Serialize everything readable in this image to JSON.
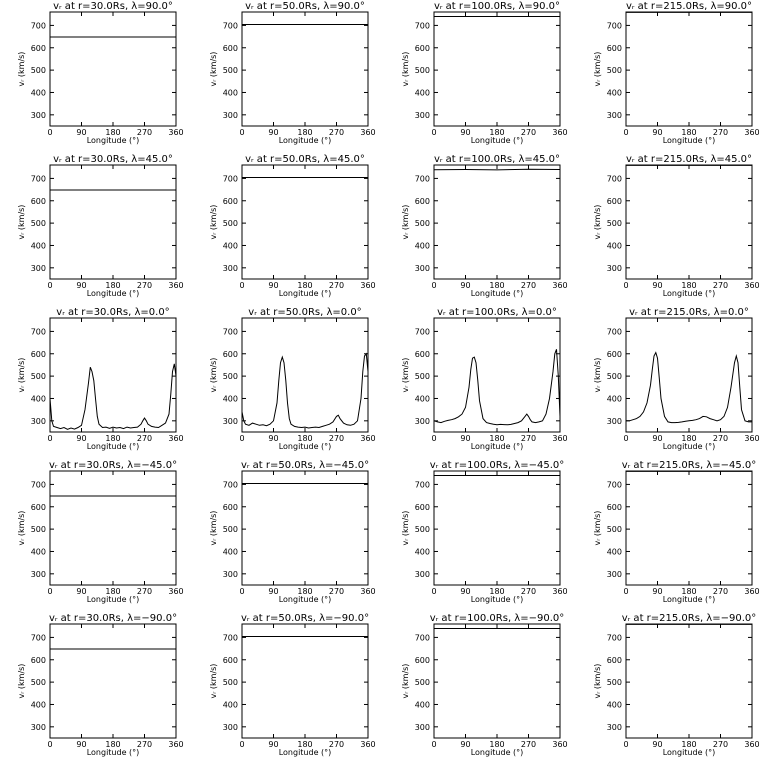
{
  "chart_data": [
    {
      "type": "line",
      "title": "vᵣ at r=30.0Rs, λ=90.0°",
      "xlabel": "Longitude (°)",
      "ylabel": "vᵣ (km/s)",
      "xlim": [
        0,
        360
      ],
      "ylim": [
        250,
        760
      ],
      "xticks": [
        0,
        90,
        180,
        270,
        360
      ],
      "yticks": [
        300,
        400,
        500,
        600,
        700
      ],
      "x": [
        0,
        360
      ],
      "y": [
        648,
        648
      ]
    },
    {
      "type": "line",
      "title": "vᵣ at r=50.0Rs, λ=90.0°",
      "xlabel": "Longitude (°)",
      "ylabel": "vᵣ (km/s)",
      "xlim": [
        0,
        360
      ],
      "ylim": [
        250,
        760
      ],
      "xticks": [
        0,
        90,
        180,
        270,
        360
      ],
      "yticks": [
        300,
        400,
        500,
        600,
        700
      ],
      "x": [
        0,
        360
      ],
      "y": [
        704,
        704
      ]
    },
    {
      "type": "line",
      "title": "vᵣ at r=100.0Rs, λ=90.0°",
      "xlabel": "Longitude (°)",
      "ylabel": "vᵣ (km/s)",
      "xlim": [
        0,
        360
      ],
      "ylim": [
        250,
        760
      ],
      "xticks": [
        0,
        90,
        180,
        270,
        360
      ],
      "yticks": [
        300,
        400,
        500,
        600,
        700
      ],
      "x": [
        0,
        360
      ],
      "y": [
        740,
        740
      ]
    },
    {
      "type": "line",
      "title": "vᵣ at r=215.0Rs, λ=90.0°",
      "xlabel": "Longitude (°)",
      "ylabel": "vᵣ (km/s)",
      "xlim": [
        0,
        360
      ],
      "ylim": [
        250,
        760
      ],
      "xticks": [
        0,
        90,
        180,
        270,
        360
      ],
      "yticks": [
        300,
        400,
        500,
        600,
        700
      ],
      "x": [
        0,
        360
      ],
      "y": [
        758,
        758
      ]
    },
    {
      "type": "line",
      "title": "vᵣ at r=30.0Rs, λ=45.0°",
      "xlabel": "Longitude (°)",
      "ylabel": "vᵣ (km/s)",
      "xlim": [
        0,
        360
      ],
      "ylim": [
        250,
        760
      ],
      "xticks": [
        0,
        90,
        180,
        270,
        360
      ],
      "yticks": [
        300,
        400,
        500,
        600,
        700
      ],
      "x": [
        0,
        360
      ],
      "y": [
        648,
        648
      ]
    },
    {
      "type": "line",
      "title": "vᵣ at r=50.0Rs, λ=45.0°",
      "xlabel": "Longitude (°)",
      "ylabel": "vᵣ (km/s)",
      "xlim": [
        0,
        360
      ],
      "ylim": [
        250,
        760
      ],
      "xticks": [
        0,
        90,
        180,
        270,
        360
      ],
      "yticks": [
        300,
        400,
        500,
        600,
        700
      ],
      "x": [
        0,
        360
      ],
      "y": [
        704,
        704
      ]
    },
    {
      "type": "line",
      "title": "vᵣ at r=100.0Rs, λ=45.0°",
      "xlabel": "Longitude (°)",
      "ylabel": "vᵣ (km/s)",
      "xlim": [
        0,
        360
      ],
      "ylim": [
        250,
        760
      ],
      "xticks": [
        0,
        90,
        180,
        270,
        360
      ],
      "yticks": [
        300,
        400,
        500,
        600,
        700
      ],
      "x": [
        0,
        90,
        180,
        270,
        360
      ],
      "y": [
        739,
        740,
        738,
        741,
        740
      ]
    },
    {
      "type": "line",
      "title": "vᵣ at r=215.0Rs, λ=45.0°",
      "xlabel": "Longitude (°)",
      "ylabel": "vᵣ (km/s)",
      "xlim": [
        0,
        360
      ],
      "ylim": [
        250,
        760
      ],
      "xticks": [
        0,
        90,
        180,
        270,
        360
      ],
      "yticks": [
        300,
        400,
        500,
        600,
        700
      ],
      "x": [
        0,
        360
      ],
      "y": [
        758,
        758
      ]
    },
    {
      "type": "line",
      "title": "vᵣ at r=30.0Rs, λ=0.0°",
      "xlabel": "Longitude (°)",
      "ylabel": "vᵣ (km/s)",
      "xlim": [
        0,
        360
      ],
      "ylim": [
        250,
        760
      ],
      "xticks": [
        0,
        90,
        180,
        270,
        360
      ],
      "yticks": [
        300,
        400,
        500,
        600,
        700
      ],
      "x": [
        0,
        5,
        10,
        20,
        30,
        40,
        50,
        60,
        70,
        80,
        90,
        100,
        110,
        115,
        120,
        125,
        130,
        135,
        140,
        150,
        160,
        170,
        180,
        190,
        200,
        210,
        220,
        230,
        240,
        250,
        260,
        265,
        270,
        275,
        280,
        290,
        300,
        310,
        320,
        330,
        340,
        345,
        350,
        355,
        360
      ],
      "y": [
        400,
        300,
        275,
        270,
        265,
        270,
        262,
        268,
        263,
        270,
        280,
        350,
        470,
        540,
        520,
        480,
        400,
        320,
        285,
        270,
        272,
        266,
        272,
        268,
        270,
        265,
        272,
        268,
        270,
        272,
        285,
        300,
        312,
        300,
        285,
        275,
        272,
        270,
        280,
        290,
        330,
        420,
        520,
        555,
        500
      ]
    },
    {
      "type": "line",
      "title": "vᵣ at r=50.0Rs, λ=0.0°",
      "xlabel": "Longitude (°)",
      "ylabel": "vᵣ (km/s)",
      "xlim": [
        0,
        360
      ],
      "ylim": [
        250,
        760
      ],
      "xticks": [
        0,
        90,
        180,
        270,
        360
      ],
      "yticks": [
        300,
        400,
        500,
        600,
        700
      ],
      "x": [
        0,
        5,
        10,
        20,
        30,
        40,
        50,
        60,
        70,
        80,
        90,
        100,
        105,
        110,
        115,
        120,
        125,
        130,
        135,
        140,
        150,
        160,
        170,
        180,
        190,
        200,
        210,
        220,
        230,
        240,
        250,
        260,
        270,
        275,
        280,
        290,
        300,
        310,
        320,
        330,
        340,
        345,
        350,
        355,
        360
      ],
      "y": [
        340,
        300,
        285,
        280,
        290,
        285,
        280,
        282,
        278,
        285,
        300,
        380,
        480,
        560,
        585,
        560,
        480,
        380,
        310,
        285,
        275,
        272,
        270,
        272,
        268,
        270,
        272,
        270,
        275,
        280,
        285,
        295,
        320,
        325,
        310,
        290,
        282,
        280,
        285,
        300,
        400,
        520,
        590,
        600,
        520
      ]
    },
    {
      "type": "line",
      "title": "vᵣ at r=100.0Rs, λ=0.0°",
      "xlabel": "Longitude (°)",
      "ylabel": "vᵣ (km/s)",
      "xlim": [
        0,
        360
      ],
      "ylim": [
        250,
        760
      ],
      "xticks": [
        0,
        90,
        180,
        270,
        360
      ],
      "yticks": [
        300,
        400,
        500,
        600,
        700
      ],
      "x": [
        0,
        10,
        20,
        30,
        40,
        50,
        60,
        70,
        80,
        90,
        100,
        105,
        110,
        115,
        120,
        125,
        130,
        140,
        150,
        160,
        170,
        180,
        190,
        200,
        210,
        220,
        230,
        240,
        250,
        260,
        265,
        270,
        275,
        280,
        290,
        300,
        310,
        320,
        330,
        340,
        345,
        350,
        355,
        360
      ],
      "y": [
        300,
        295,
        292,
        298,
        302,
        305,
        310,
        318,
        330,
        360,
        450,
        530,
        580,
        585,
        560,
        480,
        390,
        310,
        292,
        288,
        285,
        282,
        284,
        283,
        282,
        284,
        288,
        292,
        300,
        320,
        330,
        320,
        305,
        295,
        292,
        295,
        300,
        330,
        400,
        520,
        600,
        620,
        500,
        320
      ]
    },
    {
      "type": "line",
      "title": "vᵣ at r=215.0Rs, λ=0.0°",
      "xlabel": "Longitude (°)",
      "ylabel": "vᵣ (km/s)",
      "xlim": [
        0,
        360
      ],
      "ylim": [
        250,
        760
      ],
      "xticks": [
        0,
        90,
        180,
        270,
        360
      ],
      "yticks": [
        300,
        400,
        500,
        600,
        700
      ],
      "x": [
        0,
        10,
        20,
        30,
        40,
        50,
        60,
        70,
        75,
        80,
        85,
        90,
        95,
        100,
        110,
        120,
        130,
        140,
        150,
        160,
        170,
        180,
        190,
        200,
        210,
        220,
        230,
        240,
        250,
        260,
        270,
        280,
        290,
        300,
        310,
        315,
        320,
        325,
        330,
        340,
        350,
        360
      ],
      "y": [
        300,
        300,
        305,
        310,
        320,
        340,
        380,
        460,
        530,
        590,
        605,
        580,
        490,
        400,
        320,
        295,
        292,
        292,
        293,
        295,
        298,
        300,
        302,
        305,
        310,
        320,
        318,
        310,
        305,
        300,
        305,
        320,
        360,
        450,
        560,
        590,
        560,
        450,
        350,
        300,
        295,
        295
      ]
    },
    {
      "type": "line",
      "title": "vᵣ at r=30.0Rs, λ=−45.0°",
      "xlabel": "Longitude (°)",
      "ylabel": "vᵣ (km/s)",
      "xlim": [
        0,
        360
      ],
      "ylim": [
        250,
        760
      ],
      "xticks": [
        0,
        90,
        180,
        270,
        360
      ],
      "yticks": [
        300,
        400,
        500,
        600,
        700
      ],
      "x": [
        0,
        360
      ],
      "y": [
        648,
        648
      ]
    },
    {
      "type": "line",
      "title": "vᵣ at r=50.0Rs, λ=−45.0°",
      "xlabel": "Longitude (°)",
      "ylabel": "vᵣ (km/s)",
      "xlim": [
        0,
        360
      ],
      "ylim": [
        250,
        760
      ],
      "xticks": [
        0,
        90,
        180,
        270,
        360
      ],
      "yticks": [
        300,
        400,
        500,
        600,
        700
      ],
      "x": [
        0,
        360
      ],
      "y": [
        704,
        704
      ]
    },
    {
      "type": "line",
      "title": "vᵣ at r=100.0Rs, λ=−45.0°",
      "xlabel": "Longitude (°)",
      "ylabel": "vᵣ (km/s)",
      "xlim": [
        0,
        360
      ],
      "ylim": [
        250,
        760
      ],
      "xticks": [
        0,
        90,
        180,
        270,
        360
      ],
      "yticks": [
        300,
        400,
        500,
        600,
        700
      ],
      "x": [
        0,
        360
      ],
      "y": [
        740,
        740
      ]
    },
    {
      "type": "line",
      "title": "vᵣ at r=215.0Rs, λ=−45.0°",
      "xlabel": "Longitude (°)",
      "ylabel": "vᵣ (km/s)",
      "xlim": [
        0,
        360
      ],
      "ylim": [
        250,
        760
      ],
      "xticks": [
        0,
        90,
        180,
        270,
        360
      ],
      "yticks": [
        300,
        400,
        500,
        600,
        700
      ],
      "x": [
        0,
        360
      ],
      "y": [
        758,
        758
      ]
    },
    {
      "type": "line",
      "title": "vᵣ at r=30.0Rs, λ=−90.0°",
      "xlabel": "Longitude (°)",
      "ylabel": "vᵣ (km/s)",
      "xlim": [
        0,
        360
      ],
      "ylim": [
        250,
        760
      ],
      "xticks": [
        0,
        90,
        180,
        270,
        360
      ],
      "yticks": [
        300,
        400,
        500,
        600,
        700
      ],
      "x": [
        0,
        360
      ],
      "y": [
        648,
        648
      ]
    },
    {
      "type": "line",
      "title": "vᵣ at r=50.0Rs, λ=−90.0°",
      "xlabel": "Longitude (°)",
      "ylabel": "vᵣ (km/s)",
      "xlim": [
        0,
        360
      ],
      "ylim": [
        250,
        760
      ],
      "xticks": [
        0,
        90,
        180,
        270,
        360
      ],
      "yticks": [
        300,
        400,
        500,
        600,
        700
      ],
      "x": [
        0,
        360
      ],
      "y": [
        704,
        704
      ]
    },
    {
      "type": "line",
      "title": "vᵣ at r=100.0Rs, λ=−90.0°",
      "xlabel": "Longitude (°)",
      "ylabel": "vᵣ (km/s)",
      "xlim": [
        0,
        360
      ],
      "ylim": [
        250,
        760
      ],
      "xticks": [
        0,
        90,
        180,
        270,
        360
      ],
      "yticks": [
        300,
        400,
        500,
        600,
        700
      ],
      "x": [
        0,
        360
      ],
      "y": [
        740,
        740
      ]
    },
    {
      "type": "line",
      "title": "vᵣ at r=215.0Rs, λ=−90.0°",
      "xlabel": "Longitude (°)",
      "ylabel": "vᵣ (km/s)",
      "xlim": [
        0,
        360
      ],
      "ylim": [
        250,
        760
      ],
      "xticks": [
        0,
        90,
        180,
        270,
        360
      ],
      "yticks": [
        300,
        400,
        500,
        600,
        700
      ],
      "x": [
        0,
        360
      ],
      "y": [
        758,
        758
      ]
    }
  ]
}
